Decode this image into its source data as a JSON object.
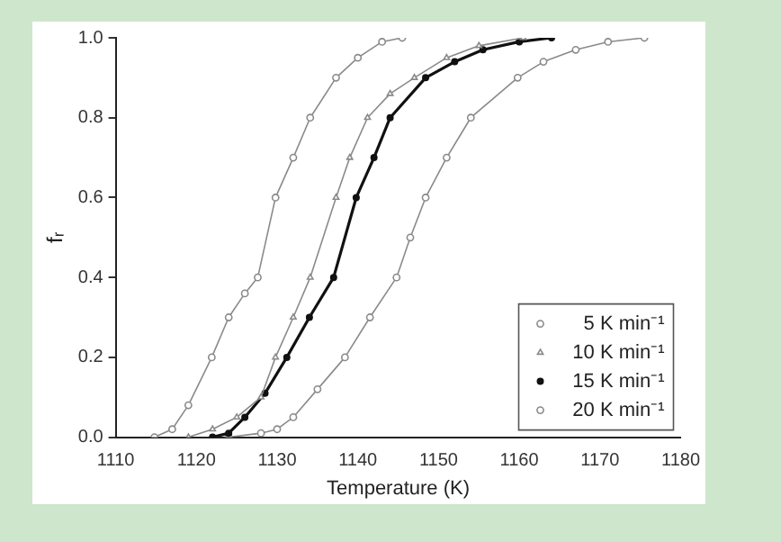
{
  "chart_data": {
    "type": "line",
    "xlabel": "Temperature (K)",
    "ylabel": "fᵣ",
    "xlim": [
      1110,
      1180
    ],
    "xticks": [
      1110,
      1120,
      1130,
      1140,
      1150,
      1160,
      1170,
      1180
    ],
    "ylim": [
      0,
      1
    ],
    "yticks": [
      {
        "value": 0,
        "label": "0.0"
      },
      {
        "value": 0.2,
        "label": "0.2"
      },
      {
        "value": 0.4,
        "label": "0.4"
      },
      {
        "value": 0.6,
        "label": "0.6"
      },
      {
        "value": 0.8,
        "label": "0.8"
      },
      {
        "value": 1,
        "label": "1.0"
      }
    ],
    "grid": false,
    "legend": "bottom right",
    "line_style": "solid",
    "series": [
      {
        "name": "5 K min⁻¹",
        "color": "#8a8a8a",
        "marker": "circle",
        "x": [
          1114.8,
          1117,
          1119,
          1121.9,
          1124,
          1126,
          1127.6,
          1129.8,
          1132,
          1134.1,
          1137.3,
          1140,
          1143,
          1145.5
        ],
        "values": [
          0,
          0.02,
          0.08,
          0.2,
          0.3,
          0.36,
          0.4,
          0.6,
          0.7,
          0.8,
          0.9,
          0.95,
          0.99,
          1
        ]
      },
      {
        "name": "10 K min⁻¹",
        "color": "#8a8a8a",
        "marker": "triangle",
        "x": [
          1119,
          1122,
          1125,
          1128,
          1129.8,
          1132,
          1134.1,
          1137.3,
          1139,
          1141.2,
          1144,
          1147,
          1151,
          1155,
          1160.5
        ],
        "values": [
          0,
          0.02,
          0.05,
          0.1,
          0.2,
          0.3,
          0.4,
          0.6,
          0.7,
          0.8,
          0.86,
          0.9,
          0.95,
          0.98,
          1
        ]
      },
      {
        "name": "15 K min⁻¹",
        "color": "#111111",
        "marker": "circle_filled",
        "x": [
          1122,
          1124,
          1126,
          1128.5,
          1131.2,
          1134,
          1137,
          1139.8,
          1142,
          1144,
          1148.4,
          1152,
          1155.5,
          1160,
          1164
        ],
        "values": [
          0,
          0.01,
          0.05,
          0.11,
          0.2,
          0.3,
          0.4,
          0.6,
          0.7,
          0.8,
          0.9,
          0.94,
          0.97,
          0.99,
          1
        ]
      },
      {
        "name": "20 K min⁻¹",
        "color": "#8a8a8a",
        "marker": "circle",
        "x": [
          1124,
          1128,
          1130,
          1132,
          1135,
          1138.4,
          1141.5,
          1144.8,
          1146.5,
          1148.4,
          1151,
          1154,
          1159.8,
          1163,
          1167,
          1171,
          1175.5
        ],
        "values": [
          0,
          0.01,
          0.02,
          0.05,
          0.12,
          0.2,
          0.3,
          0.4,
          0.5,
          0.6,
          0.7,
          0.8,
          0.9,
          0.94,
          0.97,
          0.99,
          1
        ]
      }
    ]
  }
}
